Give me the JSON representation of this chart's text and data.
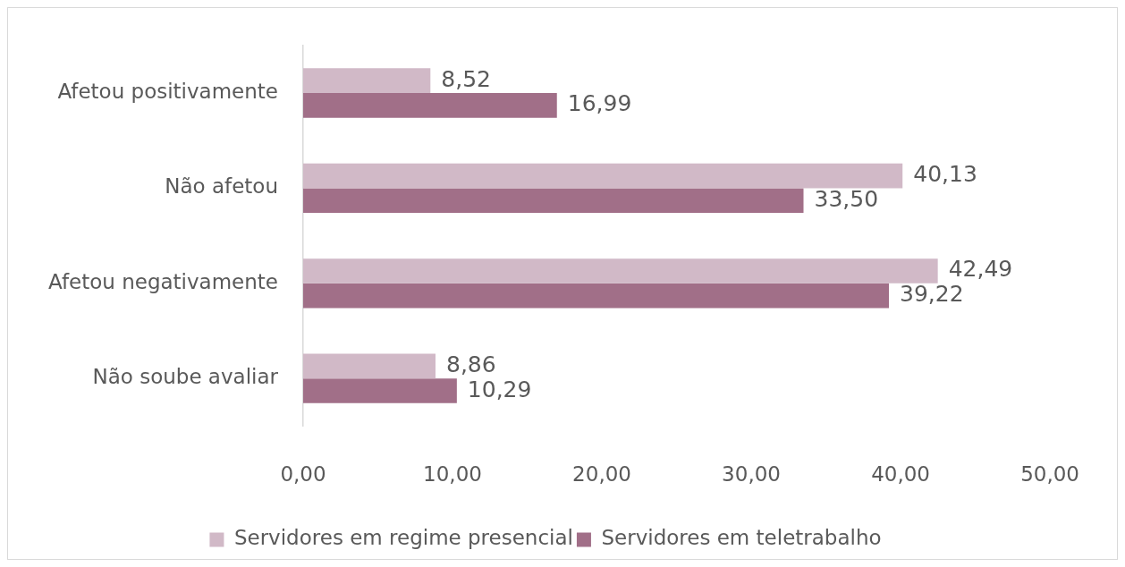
{
  "chart_data": {
    "type": "bar",
    "orientation": "horizontal",
    "categories": [
      "Afetou positivamente",
      "Não afetou",
      "Afetou negativamente",
      "Não soube avaliar"
    ],
    "series": [
      {
        "name": "Servidores em regime presencial",
        "color": "#d1b9c7",
        "values": [
          8.52,
          40.13,
          42.49,
          8.86
        ],
        "value_labels": [
          "8,52",
          "40,13",
          "42,49",
          "8,86"
        ]
      },
      {
        "name": "Servidores em teletrabalho",
        "color": "#a16f88",
        "values": [
          16.99,
          33.5,
          39.22,
          10.29
        ],
        "value_labels": [
          "16,99",
          "33,50",
          "39,22",
          "10,29"
        ]
      }
    ],
    "xlim": [
      0,
      50
    ],
    "xticks": [
      {
        "value": 0,
        "label": "0,00"
      },
      {
        "value": 10,
        "label": "10,00"
      },
      {
        "value": 20,
        "label": "20,00"
      },
      {
        "value": 30,
        "label": "30,00"
      },
      {
        "value": 40,
        "label": "40,00"
      },
      {
        "value": 50,
        "label": "50,00"
      }
    ],
    "legend": "bottom"
  }
}
